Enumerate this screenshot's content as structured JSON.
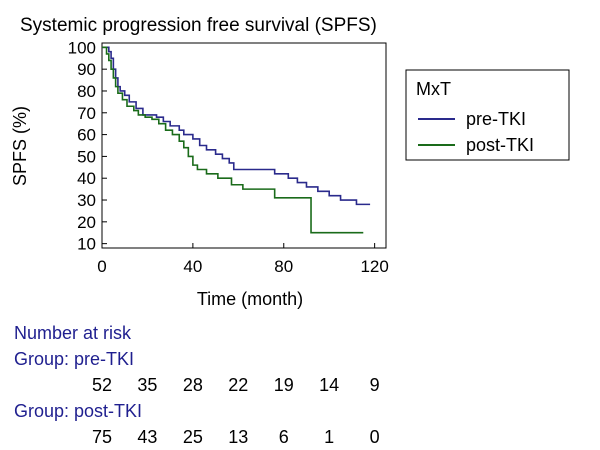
{
  "chart_data": {
    "type": "line",
    "title": "Systemic progression free survival (SPFS)",
    "xlabel": "Time (month)",
    "ylabel": "SPFS (%)",
    "xlim": [
      0,
      125
    ],
    "ylim": [
      8,
      102
    ],
    "xticks": [
      0,
      40,
      80,
      120
    ],
    "yticks": [
      10,
      20,
      30,
      40,
      50,
      60,
      70,
      80,
      90,
      100
    ],
    "grid": false,
    "legend": {
      "title": "MxT",
      "position": "right"
    },
    "series": [
      {
        "name": "pre-TKI",
        "color": "#2a2a8c",
        "steps": [
          [
            0,
            100
          ],
          [
            3,
            98
          ],
          [
            4,
            95
          ],
          [
            5,
            90
          ],
          [
            6,
            86
          ],
          [
            7,
            82
          ],
          [
            8,
            80
          ],
          [
            10,
            78
          ],
          [
            12,
            75
          ],
          [
            15,
            72
          ],
          [
            18,
            69
          ],
          [
            24,
            68
          ],
          [
            27,
            66
          ],
          [
            30,
            64
          ],
          [
            34,
            62
          ],
          [
            36,
            60
          ],
          [
            40,
            58
          ],
          [
            43,
            55
          ],
          [
            46,
            53
          ],
          [
            50,
            51
          ],
          [
            53,
            49
          ],
          [
            56,
            47
          ],
          [
            58,
            44
          ],
          [
            60,
            44
          ],
          [
            65,
            44
          ],
          [
            70,
            44
          ],
          [
            76,
            42
          ],
          [
            82,
            40
          ],
          [
            86,
            38
          ],
          [
            90,
            36
          ],
          [
            95,
            34
          ],
          [
            100,
            32
          ],
          [
            105,
            30
          ],
          [
            112,
            28
          ],
          [
            118,
            28
          ]
        ]
      },
      {
        "name": "post-TKI",
        "color": "#1a6b1a",
        "steps": [
          [
            0,
            100
          ],
          [
            2,
            97
          ],
          [
            3,
            94
          ],
          [
            4,
            90
          ],
          [
            5,
            86
          ],
          [
            6,
            82
          ],
          [
            7,
            79
          ],
          [
            9,
            76
          ],
          [
            11,
            73
          ],
          [
            14,
            71
          ],
          [
            16,
            69
          ],
          [
            19,
            68
          ],
          [
            22,
            67
          ],
          [
            25,
            65
          ],
          [
            28,
            62
          ],
          [
            31,
            60
          ],
          [
            34,
            57
          ],
          [
            36,
            54
          ],
          [
            38,
            50
          ],
          [
            40,
            46
          ],
          [
            42,
            44
          ],
          [
            46,
            42
          ],
          [
            51,
            40
          ],
          [
            57,
            37
          ],
          [
            62,
            35
          ],
          [
            76,
            31
          ],
          [
            91,
            31
          ],
          [
            92,
            15
          ],
          [
            115,
            15
          ]
        ]
      }
    ],
    "risk_table": {
      "title": "Number at risk",
      "time_points": [
        0,
        20,
        40,
        60,
        80,
        100,
        120
      ],
      "groups": [
        {
          "label": "Group: pre-TKI",
          "counts": [
            "52",
            "35",
            "28",
            "22",
            "19",
            "14",
            "9"
          ]
        },
        {
          "label": "Group: post-TKI",
          "counts": [
            "75",
            "43",
            "25",
            "13",
            "6",
            "1",
            "0"
          ]
        }
      ]
    }
  }
}
